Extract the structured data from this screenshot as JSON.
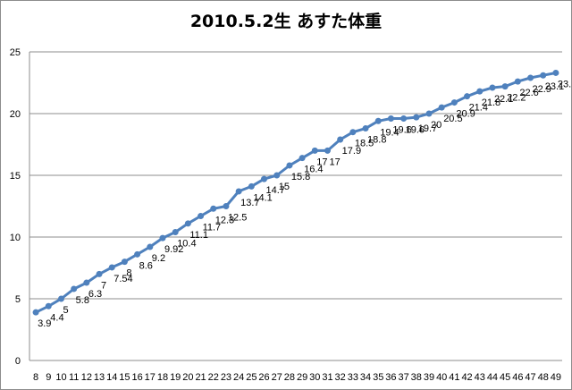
{
  "chart_data": {
    "type": "line",
    "title": "2010.5.2生 あすた体重",
    "xlabel": "",
    "ylabel": "",
    "ylim": [
      0,
      25
    ],
    "yticks": [
      0,
      5,
      10,
      15,
      20,
      25
    ],
    "grid": "horizontal",
    "legend": "none",
    "series_color": "#4f81bd",
    "categories": [
      "8",
      "9",
      "10",
      "11",
      "12",
      "13",
      "14",
      "15",
      "16",
      "17",
      "18",
      "19",
      "20",
      "21",
      "22",
      "23",
      "24",
      "25",
      "26",
      "27",
      "28",
      "29",
      "30",
      "31",
      "32",
      "33",
      "34",
      "35",
      "36",
      "37",
      "38",
      "39",
      "40",
      "41",
      "42",
      "43",
      "44",
      "45",
      "46",
      "47",
      "48",
      "49"
    ],
    "series": [
      {
        "values": [
          3.9,
          4.4,
          5,
          5.8,
          6.3,
          7,
          7.54,
          8,
          8.6,
          9.2,
          9.92,
          10.4,
          11.1,
          11.7,
          12.3,
          12.5,
          13.7,
          14.1,
          14.7,
          15,
          15.8,
          16.4,
          17,
          17,
          17.9,
          18.5,
          18.8,
          19.4,
          19.6,
          19.6,
          19.7,
          20,
          20.5,
          20.9,
          21.4,
          21.8,
          22.1,
          22.2,
          22.6,
          22.9,
          23.1,
          23.3
        ],
        "labels": [
          "3.9",
          "4.4",
          "5",
          "5.8",
          "6.3",
          "7",
          "7.54",
          "8",
          "8.6",
          "9.2",
          "9.92",
          "10.4",
          "11.1",
          "11.7",
          "12.3",
          "12.5",
          "13.7",
          "14.1",
          "14.7",
          "15",
          "15.8",
          "16.4",
          "17",
          "17",
          "17.9",
          "18.5",
          "18.8",
          "19.4",
          "19.6",
          "19.6",
          "19.7",
          "20",
          "20.5",
          "20.9",
          "21.4",
          "21.8",
          "22.1",
          "22.2",
          "22.6",
          "22.9",
          "23.1",
          "23.3"
        ]
      }
    ]
  }
}
